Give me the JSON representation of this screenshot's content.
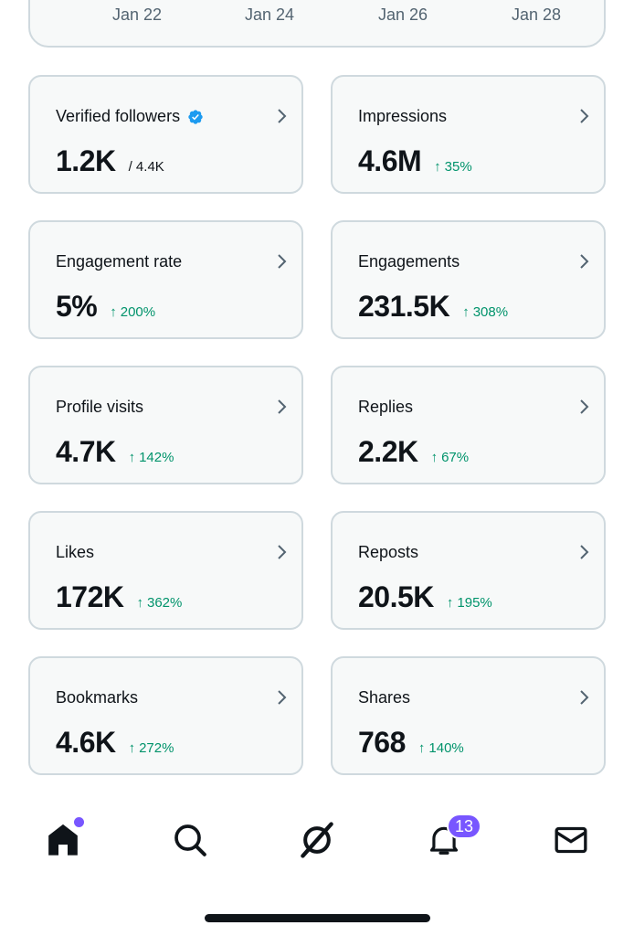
{
  "chart": {
    "x_ticks": [
      "Jan 22",
      "Jan 24",
      "Jan 26",
      "Jan 28"
    ]
  },
  "stats": [
    {
      "label": "Verified followers",
      "value": "1.2K",
      "total": "/ 4.4K",
      "change": "",
      "verified": true
    },
    {
      "label": "Impressions",
      "value": "4.6M",
      "change": "35%"
    },
    {
      "label": "Engagement rate",
      "value": "5%",
      "change": "200%"
    },
    {
      "label": "Engagements",
      "value": "231.5K",
      "change": "308%"
    },
    {
      "label": "Profile visits",
      "value": "4.7K",
      "change": "142%"
    },
    {
      "label": "Replies",
      "value": "2.2K",
      "change": "67%"
    },
    {
      "label": "Likes",
      "value": "172K",
      "change": "362%"
    },
    {
      "label": "Reposts",
      "value": "20.5K",
      "change": "195%"
    },
    {
      "label": "Bookmarks",
      "value": "4.6K",
      "change": "272%"
    },
    {
      "label": "Shares",
      "value": "768",
      "change": "140%"
    }
  ],
  "change_arrow": "↑",
  "nav": {
    "notifications_badge": "13",
    "items": [
      "home-icon",
      "search-icon",
      "grok-icon",
      "bell-icon",
      "mail-icon"
    ]
  },
  "colors": {
    "accent": "#7856ff",
    "positive": "#00936b",
    "verified": "#1d9bf0",
    "card_bg": "#f7f9f9",
    "card_border": "#cfd9de"
  }
}
